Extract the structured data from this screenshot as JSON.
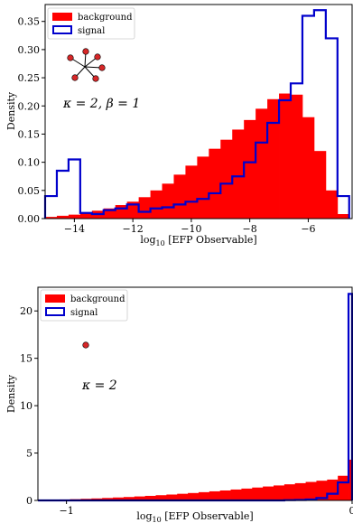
{
  "colors": {
    "background": "#ff0000",
    "signal": "#0000cc",
    "node": "#d62728"
  },
  "chart_data": [
    {
      "type": "histogram",
      "xlabel_prefix": "log",
      "xlabel_sub": "10",
      "xlabel_suffix": " [EFP Observable]",
      "ylabel": "Density",
      "xlim": [
        -15,
        -4.5
      ],
      "ylim": [
        0,
        0.38
      ],
      "xticks": [
        -14,
        -12,
        -10,
        -8,
        -6
      ],
      "xtick_labels": [
        "−14",
        "−12",
        "−10",
        "−8",
        "−6"
      ],
      "yticks": [
        0.0,
        0.05,
        0.1,
        0.15,
        0.2,
        0.25,
        0.3,
        0.35
      ],
      "ytick_labels": [
        "0.00",
        "0.05",
        "0.10",
        "0.15",
        "0.20",
        "0.25",
        "0.30",
        "0.35"
      ],
      "legend": {
        "placement": "top-left",
        "entries": [
          "background",
          "signal"
        ]
      },
      "annotation": "κ = 2, β = 1",
      "graph_icon": "star-graph-6-leaves",
      "bin_edges": [
        -15,
        -14.6,
        -14.2,
        -13.8,
        -13.4,
        -13.0,
        -12.6,
        -12.2,
        -11.8,
        -11.4,
        -11.0,
        -10.6,
        -10.2,
        -9.8,
        -9.4,
        -9.0,
        -8.6,
        -8.2,
        -7.8,
        -7.4,
        -7.0,
        -6.6,
        -6.2,
        -5.8,
        -5.4,
        -5.0,
        -4.6
      ],
      "series": [
        {
          "name": "background",
          "style": "filled",
          "values": [
            0.003,
            0.005,
            0.007,
            0.01,
            0.014,
            0.018,
            0.024,
            0.03,
            0.038,
            0.05,
            0.062,
            0.078,
            0.094,
            0.11,
            0.124,
            0.14,
            0.158,
            0.175,
            0.195,
            0.212,
            0.222,
            0.22,
            0.18,
            0.12,
            0.05,
            0.008
          ]
        },
        {
          "name": "signal",
          "style": "step",
          "values": [
            0.04,
            0.085,
            0.105,
            0.01,
            0.008,
            0.015,
            0.018,
            0.025,
            0.012,
            0.018,
            0.02,
            0.025,
            0.03,
            0.035,
            0.045,
            0.062,
            0.075,
            0.1,
            0.135,
            0.17,
            0.21,
            0.24,
            0.36,
            0.37,
            0.32,
            0.04
          ]
        }
      ]
    },
    {
      "type": "histogram",
      "xlabel_prefix": "log",
      "xlabel_sub": "10",
      "xlabel_suffix": " [EFP Observable]",
      "ylabel": "Density",
      "xlim": [
        -1.1,
        0.0
      ],
      "ylim": [
        0,
        22.5
      ],
      "xticks": [
        -1,
        0
      ],
      "xtick_labels": [
        "−1",
        "0"
      ],
      "yticks": [
        0,
        5,
        10,
        15,
        20
      ],
      "ytick_labels": [
        "0",
        "5",
        "10",
        "15",
        "20"
      ],
      "legend": {
        "placement": "top-left",
        "entries": [
          "background",
          "signal"
        ]
      },
      "annotation": "κ = 2",
      "graph_icon": "single-node",
      "bin_edges": [
        -1.1,
        -1.0625,
        -1.025,
        -0.9875,
        -0.95,
        -0.9125,
        -0.875,
        -0.8375,
        -0.8,
        -0.7625,
        -0.725,
        -0.6875,
        -0.65,
        -0.6125,
        -0.575,
        -0.5375,
        -0.5,
        -0.4625,
        -0.425,
        -0.3875,
        -0.35,
        -0.3125,
        -0.275,
        -0.2375,
        -0.2,
        -0.1625,
        -0.125,
        -0.0875,
        -0.05,
        -0.0125,
        0.0
      ],
      "series": [
        {
          "name": "background",
          "style": "filled",
          "values": [
            0.05,
            0.08,
            0.1,
            0.13,
            0.17,
            0.21,
            0.26,
            0.31,
            0.36,
            0.42,
            0.48,
            0.55,
            0.62,
            0.7,
            0.78,
            0.87,
            0.96,
            1.05,
            1.15,
            1.25,
            1.36,
            1.47,
            1.58,
            1.7,
            1.82,
            1.95,
            2.08,
            2.2,
            2.6,
            4.3
          ]
        },
        {
          "name": "signal",
          "style": "step",
          "values": [
            0,
            0,
            0,
            0,
            0,
            0,
            0,
            0,
            0,
            0,
            0,
            0,
            0,
            0,
            0,
            0,
            0,
            0,
            0,
            0,
            0,
            0,
            0,
            0.03,
            0.05,
            0.1,
            0.25,
            0.7,
            1.9,
            21.8
          ]
        }
      ]
    }
  ]
}
